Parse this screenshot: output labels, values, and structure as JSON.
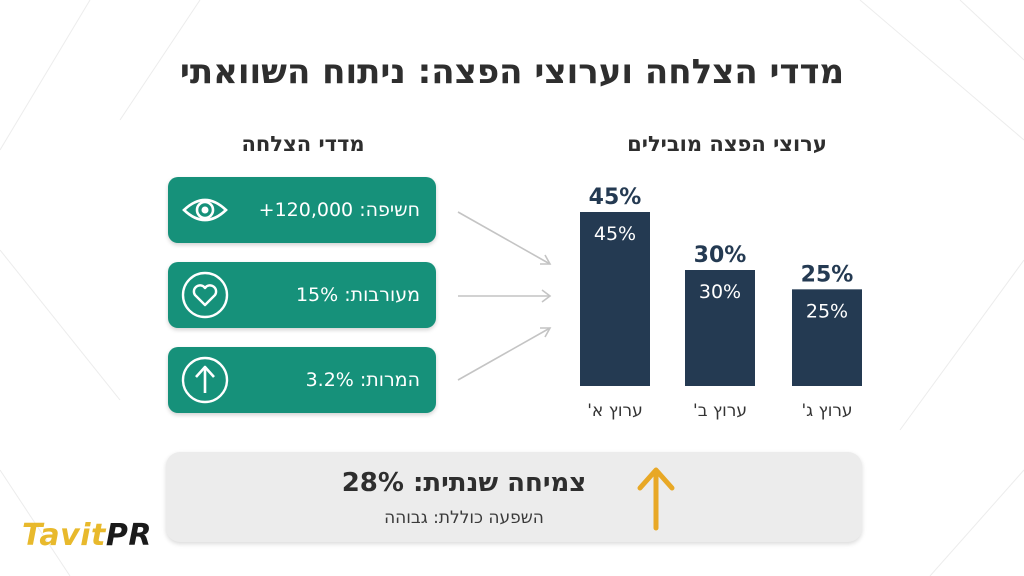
{
  "title": "מדדי הצלחה וערוצי הפצה: ניתוח השוואתי",
  "metrics_section": {
    "heading": "מדדי הצלחה",
    "items": [
      {
        "label": "חשיפה: 120,000+",
        "icon": "eye-icon"
      },
      {
        "label": "מעורבות: 15%",
        "icon": "heart-icon"
      },
      {
        "label": "המרות: 3.2%",
        "icon": "arrow-up-circle-icon"
      }
    ]
  },
  "channels_section": {
    "heading": "ערוצי הפצה מובילים"
  },
  "chart_data": {
    "type": "bar",
    "categories": [
      "ערוץ א'",
      "ערוץ ב'",
      "ערוץ ג'"
    ],
    "values": [
      45,
      30,
      25
    ],
    "value_labels": [
      "45%",
      "30%",
      "25%"
    ],
    "unit": "%",
    "ylim": [
      0,
      45
    ],
    "grid": false,
    "bar_color": "#243a52"
  },
  "growth": {
    "main": "צמיחה שנתית: 28%",
    "sub": "השפעה כוללת: גבוהה",
    "icon": "arrow-up-icon"
  },
  "brand": {
    "part1": "Tavit",
    "part2": "PR"
  },
  "colors": {
    "teal": "#16917a",
    "navy": "#243a52",
    "accent": "#e8b92c",
    "panel": "#ececec"
  }
}
